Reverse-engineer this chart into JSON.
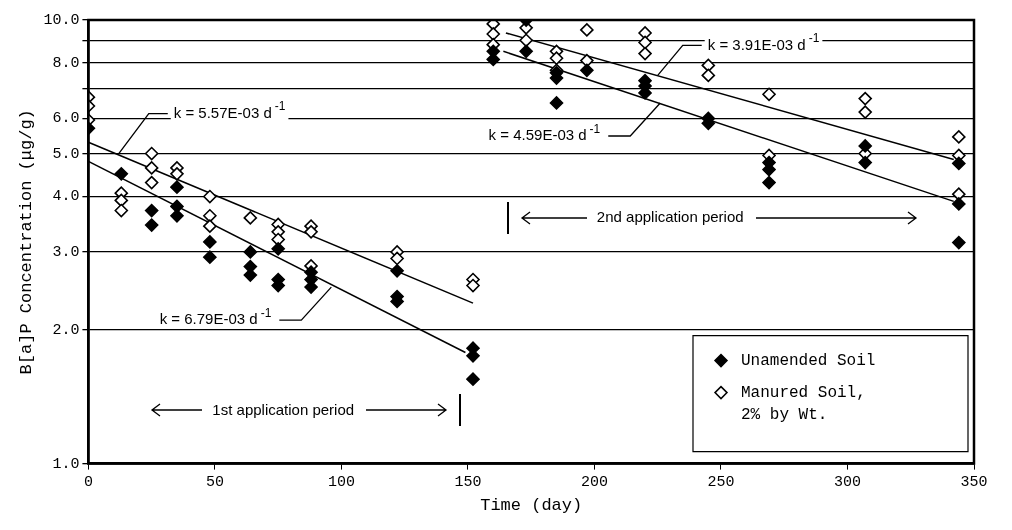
{
  "chart_data": {
    "type": "scatter",
    "xlabel": "Time (day)",
    "ylabel": "B[a]P Concentration (μg/g)",
    "xlim": [
      0,
      350
    ],
    "xticks": [
      0,
      50,
      100,
      150,
      200,
      250,
      300,
      350
    ],
    "ylim": [
      1,
      10
    ],
    "yticks": [
      {
        "value": 1,
        "label": "1.0"
      },
      {
        "value": 2,
        "label": "2.0"
      },
      {
        "value": 3,
        "label": "3.0"
      },
      {
        "value": 4,
        "label": "4.0"
      },
      {
        "value": 5,
        "label": "5.0"
      },
      {
        "value": 6,
        "label": "6.0"
      },
      {
        "value": 7,
        "label": null
      },
      {
        "value": 8,
        "label": "8.0"
      },
      {
        "value": 9,
        "label": null
      },
      {
        "value": 10,
        "label": "10.0"
      }
    ],
    "log": "y",
    "grid": "y",
    "legend": "bottom right",
    "marker": "diamond",
    "series": [
      {
        "name": "Unamended Soil",
        "color": "#000000",
        "type": "scatter",
        "x": [
          0,
          13,
          25,
          25,
          35,
          35,
          35,
          48,
          48,
          64,
          64,
          64,
          75,
          75,
          75,
          88,
          88,
          88,
          122,
          122,
          122,
          152,
          152,
          152,
          160,
          160,
          173,
          173,
          185,
          185,
          185,
          197,
          220,
          220,
          220,
          245,
          245,
          269,
          269,
          269,
          307,
          307,
          344,
          344,
          344
        ],
        "values": [
          5.7,
          4.5,
          3.72,
          3.45,
          4.2,
          3.8,
          3.62,
          3.16,
          2.92,
          3.0,
          2.78,
          2.66,
          3.05,
          2.6,
          2.52,
          2.7,
          2.6,
          2.5,
          2.72,
          2.38,
          2.32,
          1.82,
          1.75,
          1.55,
          8.5,
          8.15,
          10.0,
          8.5,
          7.6,
          7.4,
          6.5,
          7.7,
          7.3,
          7.1,
          6.85,
          6.0,
          5.85,
          4.77,
          4.6,
          4.3,
          5.2,
          4.77,
          4.75,
          3.85,
          3.15
        ]
      },
      {
        "name": "Manured Soil, 2% by Wt.",
        "color": "#000000",
        "type": "scatter",
        "x": [
          0,
          0,
          0,
          13,
          13,
          13,
          25,
          25,
          25,
          35,
          35,
          48,
          48,
          48,
          64,
          75,
          75,
          75,
          88,
          88,
          88,
          122,
          122,
          152,
          152,
          160,
          160,
          160,
          173,
          173,
          185,
          185,
          185,
          197,
          197,
          220,
          220,
          220,
          245,
          245,
          269,
          269,
          307,
          307,
          307,
          344,
          344,
          344
        ],
        "values": [
          6.7,
          6.4,
          5.95,
          4.07,
          3.92,
          3.72,
          5.0,
          4.64,
          4.3,
          4.64,
          4.5,
          4.0,
          3.62,
          3.43,
          3.58,
          3.46,
          3.33,
          3.2,
          3.43,
          3.33,
          2.79,
          3.0,
          2.9,
          2.6,
          2.52,
          9.8,
          9.3,
          8.8,
          9.6,
          9.0,
          8.5,
          8.2,
          7.7,
          9.5,
          8.1,
          9.35,
          8.9,
          8.4,
          7.9,
          7.5,
          6.8,
          4.95,
          6.65,
          6.2,
          5.0,
          5.45,
          4.95,
          4.05
        ]
      },
      {
        "color": "#000000",
        "type": "line",
        "marker": "none",
        "line_style": "solid",
        "x": [
          0,
          149
        ],
        "values": [
          4.8,
          1.78
        ]
      },
      {
        "color": "#000000",
        "type": "line",
        "marker": "none",
        "line_style": "solid",
        "x": [
          0,
          152
        ],
        "values": [
          5.3,
          2.3
        ]
      },
      {
        "color": "#000000",
        "type": "line",
        "marker": "none",
        "line_style": "solid",
        "x": [
          164,
          342
        ],
        "values": [
          8.5,
          3.9
        ]
      },
      {
        "color": "#000000",
        "type": "line",
        "marker": "none",
        "line_style": "solid",
        "x": [
          165,
          342
        ],
        "values": [
          9.35,
          4.85
        ]
      }
    ],
    "annotations": [
      {
        "text": "k = 5.57E-03 d$^{-1}$",
        "x": 12,
        "y": 5.0
      },
      {
        "text": "k = 6.79E-03 d$^{-1}$",
        "x": 96,
        "y": 2.5
      },
      {
        "text": "k = 4.59E-03 d$^{-1}$",
        "x": 226,
        "y": 6.5
      },
      {
        "text": "k = 3.91E-03 d$^{-1}$",
        "x": 225,
        "y": 7.5
      },
      "1st application period",
      "2nd application period"
    ]
  }
}
